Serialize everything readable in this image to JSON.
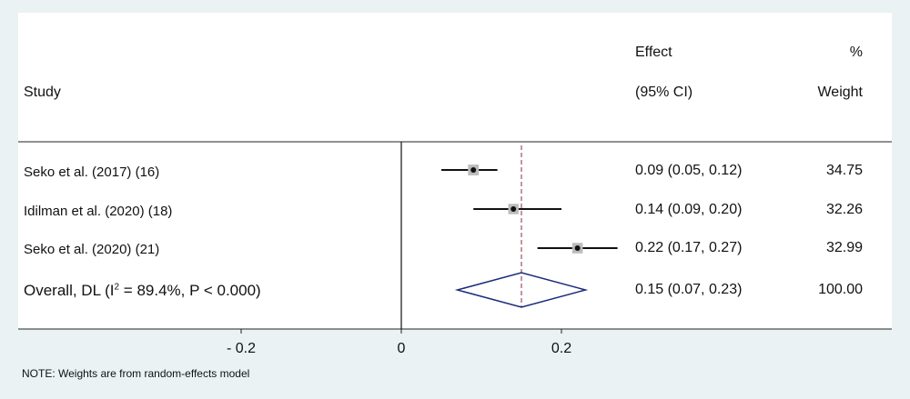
{
  "headers": {
    "study": "Study",
    "effect_line1": "Effect",
    "effect_line2": "(95% CI)",
    "weight_line1": "%",
    "weight_line2": "Weight"
  },
  "overall": {
    "label_prefix": "Overall, DL (I",
    "label_sup": "2",
    "label_suffix": " = 89.4%, P < 0.000)"
  },
  "note": "NOTE: Weights are from random-effects model",
  "colors": {
    "background": "#eaf2f3",
    "plot_panel": "#ffffff",
    "diamond": "#1a2a7a",
    "reference_line": "#8b2b3b"
  },
  "chart_data": {
    "type": "forest",
    "x_ticks": [
      -0.2,
      0,
      0.2
    ],
    "x_tick_labels": [
      "- 0.2",
      "0",
      "0.2"
    ],
    "null_line": 0,
    "overall_line": 0.15,
    "studies": [
      {
        "label": "Seko et al. (2017) (16)",
        "effect": 0.09,
        "ci_low": 0.05,
        "ci_high": 0.12,
        "ci_text": "0.09 (0.05, 0.12)",
        "weight": 34.75,
        "weight_text": "34.75"
      },
      {
        "label": "Idilman et al.  (2020) (18)",
        "effect": 0.14,
        "ci_low": 0.09,
        "ci_high": 0.2,
        "ci_text": "0.14 (0.09, 0.20)",
        "weight": 32.26,
        "weight_text": "32.26"
      },
      {
        "label": "Seko et al. (2020) (21)",
        "effect": 0.22,
        "ci_low": 0.17,
        "ci_high": 0.27,
        "ci_text": "0.22 (0.17, 0.27)",
        "weight": 32.99,
        "weight_text": "32.99"
      }
    ],
    "pooled": {
      "effect": 0.15,
      "ci_low": 0.07,
      "ci_high": 0.23,
      "ci_text": "0.15 (0.07, 0.23)",
      "weight_text": "100.00"
    }
  }
}
